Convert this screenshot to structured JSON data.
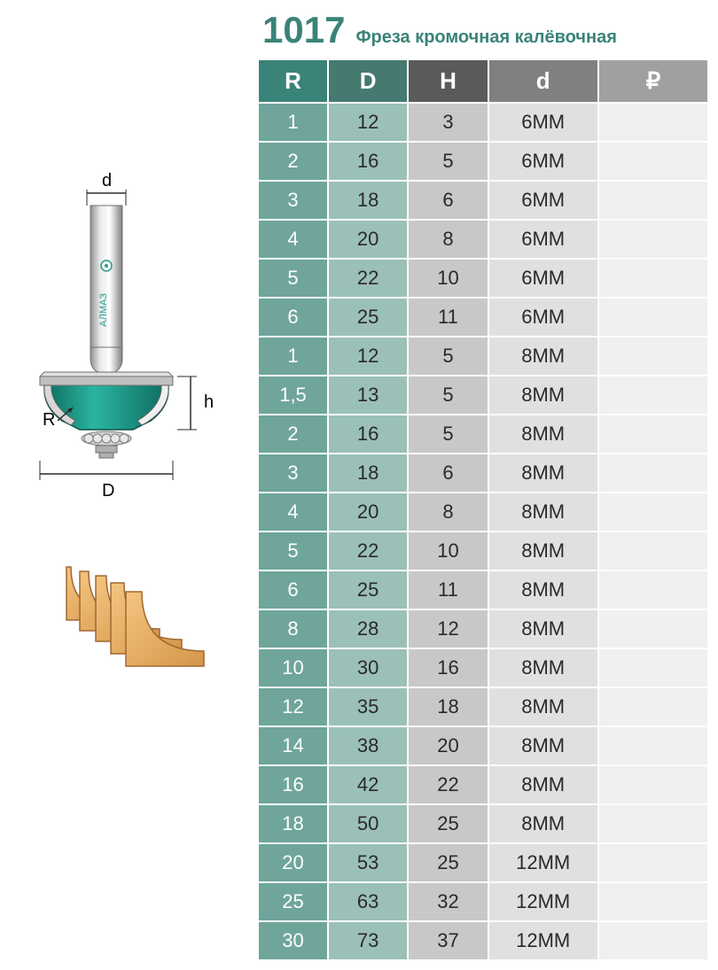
{
  "product": {
    "number": "1017",
    "name": "Фреза кромочная калёвочная"
  },
  "table": {
    "headers": {
      "r": "R",
      "d_upper": "D",
      "h": "H",
      "d_lower": "d",
      "price": "₽"
    },
    "header_colors": {
      "r": "#3a8378",
      "d_upper": "#457a71",
      "h": "#5a5a5a",
      "d_lower": "#808080",
      "price": "#a0a0a0"
    },
    "column_colors": {
      "r": "#6fa59b",
      "d_upper": "#9bc0b8",
      "h": "#c8c8c8",
      "d_lower": "#e0e0e0",
      "price": "#f0f0f0"
    },
    "rows": [
      {
        "r": "1",
        "d_upper": "12",
        "h": "3",
        "d_lower": "6ММ",
        "price": ""
      },
      {
        "r": "2",
        "d_upper": "16",
        "h": "5",
        "d_lower": "6ММ",
        "price": ""
      },
      {
        "r": "3",
        "d_upper": "18",
        "h": "6",
        "d_lower": "6ММ",
        "price": ""
      },
      {
        "r": "4",
        "d_upper": "20",
        "h": "8",
        "d_lower": "6ММ",
        "price": ""
      },
      {
        "r": "5",
        "d_upper": "22",
        "h": "10",
        "d_lower": "6ММ",
        "price": ""
      },
      {
        "r": "6",
        "d_upper": "25",
        "h": "11",
        "d_lower": "6ММ",
        "price": ""
      },
      {
        "r": "1",
        "d_upper": "12",
        "h": "5",
        "d_lower": "8ММ",
        "price": ""
      },
      {
        "r": "1,5",
        "d_upper": "13",
        "h": "5",
        "d_lower": "8ММ",
        "price": ""
      },
      {
        "r": "2",
        "d_upper": "16",
        "h": "5",
        "d_lower": "8ММ",
        "price": ""
      },
      {
        "r": "3",
        "d_upper": "18",
        "h": "6",
        "d_lower": "8ММ",
        "price": ""
      },
      {
        "r": "4",
        "d_upper": "20",
        "h": "8",
        "d_lower": "8ММ",
        "price": ""
      },
      {
        "r": "5",
        "d_upper": "22",
        "h": "10",
        "d_lower": "8ММ",
        "price": ""
      },
      {
        "r": "6",
        "d_upper": "25",
        "h": "11",
        "d_lower": "8ММ",
        "price": ""
      },
      {
        "r": "8",
        "d_upper": "28",
        "h": "12",
        "d_lower": "8ММ",
        "price": ""
      },
      {
        "r": "10",
        "d_upper": "30",
        "h": "16",
        "d_lower": "8ММ",
        "price": ""
      },
      {
        "r": "12",
        "d_upper": "35",
        "h": "18",
        "d_lower": "8ММ",
        "price": ""
      },
      {
        "r": "14",
        "d_upper": "38",
        "h": "20",
        "d_lower": "8ММ",
        "price": ""
      },
      {
        "r": "16",
        "d_upper": "42",
        "h": "22",
        "d_lower": "8ММ",
        "price": ""
      },
      {
        "r": "18",
        "d_upper": "50",
        "h": "25",
        "d_lower": "8ММ",
        "price": ""
      },
      {
        "r": "20",
        "d_upper": "53",
        "h": "25",
        "d_lower": "12ММ",
        "price": ""
      },
      {
        "r": "25",
        "d_upper": "63",
        "h": "32",
        "d_lower": "12ММ",
        "price": ""
      },
      {
        "r": "30",
        "d_upper": "73",
        "h": "37",
        "d_lower": "12ММ",
        "price": ""
      }
    ]
  },
  "diagram": {
    "labels": {
      "d_shank": "d",
      "h_height": "h",
      "r_radius": "R",
      "d_diameter": "D"
    },
    "brand": "АЛМАЗ",
    "colors": {
      "shank": "#c0c0c0",
      "shank_gradient_light": "#e8e8e8",
      "shank_gradient_dark": "#909090",
      "cutter": "#1a9b8a",
      "cutter_dark": "#0d6b5e",
      "bearing": "#d0d0d0",
      "wood_light": "#f4c580",
      "wood_dark": "#d4954a",
      "dimension_line": "#2a2a2a"
    }
  }
}
